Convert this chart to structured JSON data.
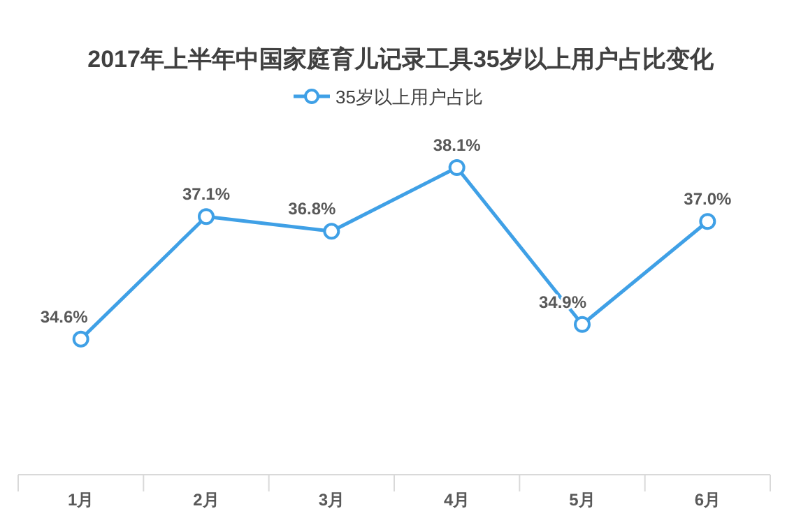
{
  "chart_data": {
    "type": "line",
    "title": "2017年上半年中国家庭育儿记录工具35岁以上用户占比变化",
    "categories": [
      "1月",
      "2月",
      "3月",
      "4月",
      "5月",
      "6月"
    ],
    "series": [
      {
        "name": "35岁以上用户占比",
        "color": "#3fa0e6",
        "values": [
          34.6,
          37.1,
          36.8,
          38.1,
          34.9,
          37.0
        ],
        "value_labels": [
          "34.6%",
          "37.1%",
          "36.8%",
          "38.1%",
          "34.9%",
          "37.0%"
        ]
      }
    ],
    "legend": "top",
    "marker": "circle"
  }
}
